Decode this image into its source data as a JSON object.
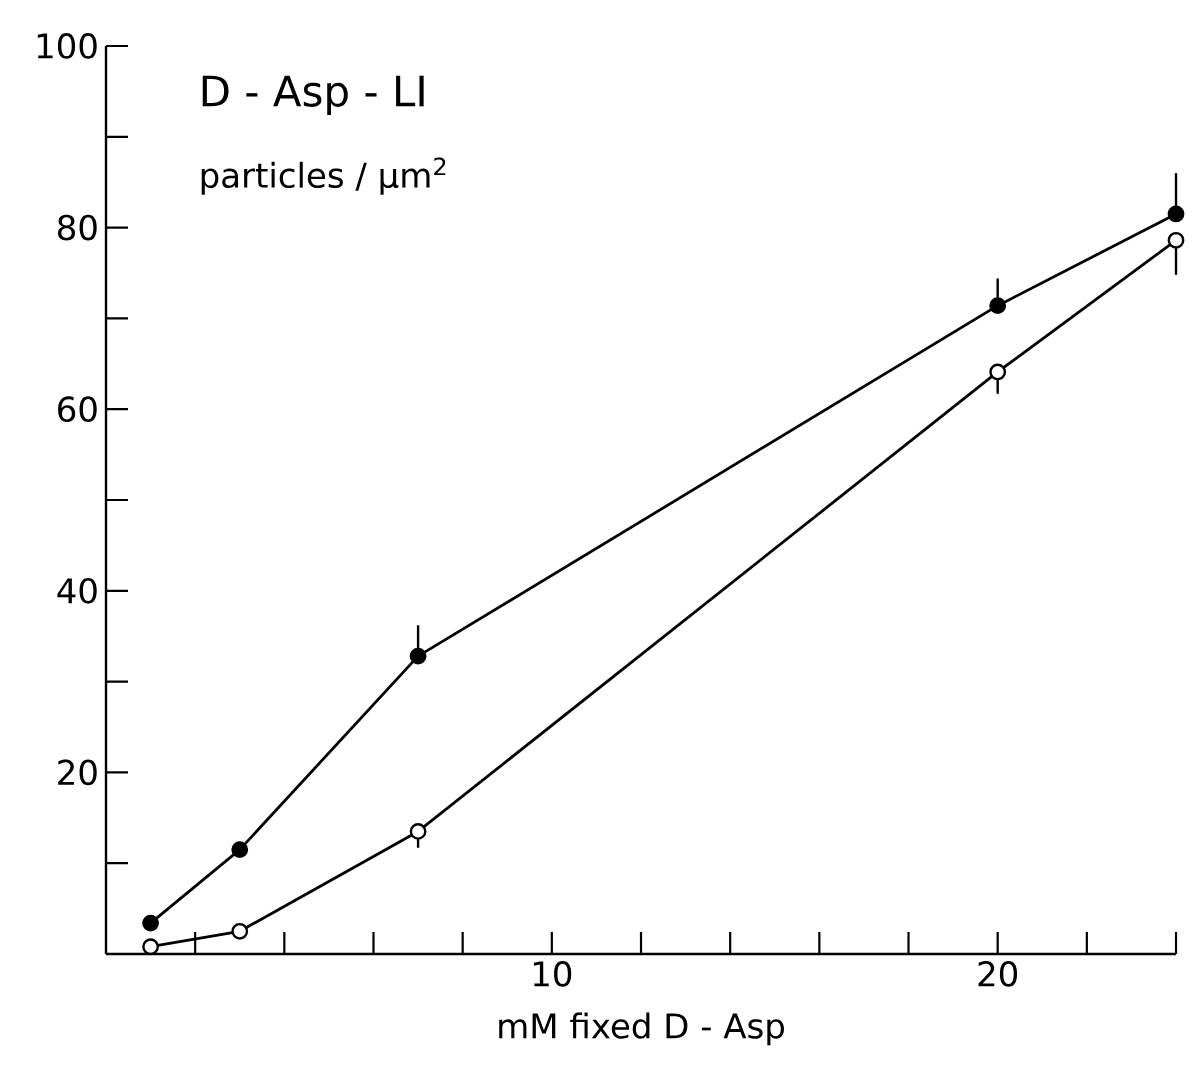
{
  "chart_data": {
    "type": "line",
    "title": "D - Asp - LI",
    "ylabel": "particles / μm$^{2}$",
    "xlabel": "mM fixed D - Asp",
    "x": [
      1,
      3,
      7,
      20,
      24
    ],
    "series": [
      {
        "color": "#000000",
        "values": [
          3.4,
          11.5,
          32.8,
          71.4,
          81.5
        ],
        "errors": [
          null,
          null,
          [
            32.8,
            36.2
          ],
          [
            71.4,
            74.4
          ],
          [
            81.5,
            86
          ]
        ]
      },
      {
        "color": "#000000",
        "values": [
          0.8,
          2.5,
          13.5,
          64.1,
          78.6
        ],
        "errors": [
          null,
          null,
          [
            11.7,
            13.5
          ],
          [
            61.7,
            64.1
          ],
          [
            74.8,
            78.6
          ]
        ]
      }
    ],
    "xlim": [
      0,
      24
    ],
    "ylim": [
      0,
      100
    ],
    "xticks": [
      {
        "value": 2,
        "label": null
      },
      {
        "value": 4,
        "label": null
      },
      {
        "value": 6,
        "label": null
      },
      {
        "value": 8,
        "label": null
      },
      10,
      {
        "value": 12,
        "label": null
      },
      {
        "value": 14,
        "label": null
      },
      {
        "value": 16,
        "label": null
      },
      {
        "value": 18,
        "label": null
      },
      20,
      {
        "value": 22,
        "label": null
      },
      {
        "value": 24,
        "label": null
      }
    ],
    "yticks": [
      {
        "value": 10,
        "label": null
      },
      20,
      {
        "value": 30,
        "label": null
      },
      40,
      {
        "value": 50,
        "label": null
      },
      60,
      {
        "value": 70,
        "label": null
      },
      80,
      {
        "value": 90,
        "label": null
      },
      100
    ],
    "marker": "circle",
    "line_style": "solid"
  }
}
